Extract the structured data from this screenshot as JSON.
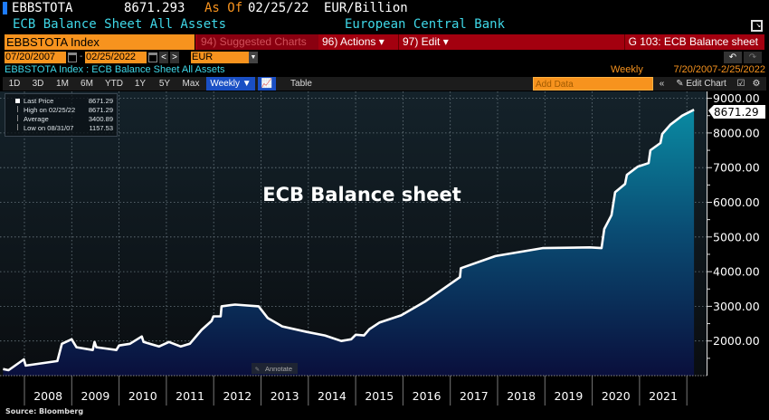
{
  "header": {
    "ticker": "EBBSTOTA",
    "price": "8671.293",
    "as_of_label": "As Of",
    "as_of_date": "02/25/22",
    "units": "EUR/Billion",
    "description": "ECB Balance Sheet All Assets",
    "source_name": "European Central Bank"
  },
  "command_bar": {
    "security_input": "EBBSTOTA Index",
    "suggested": "94) Suggested Charts",
    "actions": "96) Actions ▾",
    "edit": "97) Edit ▾",
    "page_title": "G 103: ECB Balance sheet"
  },
  "range_bar": {
    "start_date": "07/20/2007",
    "separator": "-",
    "end_date": "02/25/2022",
    "currency": "EUR",
    "prev": "<",
    "next": ">",
    "undo": "↶",
    "redo": "↷"
  },
  "subtitle": {
    "left": "EBBSTOTA Index : ECB Balance Sheet All Assets",
    "right_freq": "Weekly",
    "right_range": "7/20/2007-2/25/2022"
  },
  "toolbar": {
    "periods": [
      "1D",
      "3D",
      "1M",
      "6M",
      "YTD",
      "1Y",
      "5Y",
      "Max"
    ],
    "frequency": "Weekly ▼",
    "table": "Table",
    "add_data_placeholder": "Add Data",
    "collapse": "«",
    "edit_chart": "✎ Edit Chart"
  },
  "legend": [
    {
      "label": "Last Price",
      "value": "8671.29"
    },
    {
      "label": "High on 02/25/22",
      "value": "8671.29"
    },
    {
      "label": "Average",
      "value": "3400.89"
    },
    {
      "label": "Low on 08/31/07",
      "value": "1157.53"
    }
  ],
  "annotate_label": "Annotate",
  "footer": {
    "source": "Source:  Bloomberg"
  },
  "colors": {
    "line": "#ffffff",
    "fill_top": "#0a8aa2",
    "fill_bottom": "#0a0f3c",
    "accent_orange": "#f7931e",
    "header_red": "#a3000f",
    "cyan_text": "#3fd8e8"
  },
  "chart_data": {
    "type": "area",
    "title": "ECB Balance sheet",
    "xlabel": "",
    "ylabel": "",
    "ylim": [
      1000,
      9000
    ],
    "y_ticks": [
      "2000.00",
      "3000.00",
      "4000.00",
      "5000.00",
      "6000.00",
      "7000.00",
      "8000.00",
      "9000.00"
    ],
    "x_ticks": [
      "2008",
      "2009",
      "2010",
      "2011",
      "2012",
      "2013",
      "2014",
      "2015",
      "2016",
      "2017",
      "2018",
      "2019",
      "2020",
      "2021"
    ],
    "last_value_label": "8671.29",
    "grid": true,
    "legend_placement": "top-left",
    "series": [
      {
        "name": "Last Price",
        "points": [
          [
            "2007-07-20",
            1190
          ],
          [
            "2007-08-31",
            1157.53
          ],
          [
            "2007-12-28",
            1470
          ],
          [
            "2008-01-11",
            1290
          ],
          [
            "2008-09-12",
            1420
          ],
          [
            "2008-10-17",
            1920
          ],
          [
            "2008-12-31",
            2050
          ],
          [
            "2009-02-06",
            1820
          ],
          [
            "2009-06-12",
            1740
          ],
          [
            "2009-06-26",
            1970
          ],
          [
            "2009-07-10",
            1820
          ],
          [
            "2009-12-11",
            1740
          ],
          [
            "2010-01-01",
            1870
          ],
          [
            "2010-03-26",
            1920
          ],
          [
            "2010-06-25",
            2130
          ],
          [
            "2010-07-09",
            1970
          ],
          [
            "2010-11-05",
            1840
          ],
          [
            "2011-01-21",
            1970
          ],
          [
            "2011-04-22",
            1840
          ],
          [
            "2011-07-01",
            1920
          ],
          [
            "2011-09-30",
            2320
          ],
          [
            "2011-12-16",
            2580
          ],
          [
            "2011-12-30",
            2710
          ],
          [
            "2012-02-24",
            2710
          ],
          [
            "2012-03-02",
            3000
          ],
          [
            "2012-06-15",
            3050
          ],
          [
            "2012-12-14",
            3000
          ],
          [
            "2013-02-22",
            2660
          ],
          [
            "2013-06-14",
            2420
          ],
          [
            "2013-12-20",
            2260
          ],
          [
            "2014-05-09",
            2160
          ],
          [
            "2014-09-12",
            2000
          ],
          [
            "2014-11-28",
            2050
          ],
          [
            "2015-01-02",
            2180
          ],
          [
            "2015-03-06",
            2160
          ],
          [
            "2015-04-17",
            2340
          ],
          [
            "2015-07-03",
            2530
          ],
          [
            "2015-12-18",
            2740
          ],
          [
            "2016-06-17",
            3130
          ],
          [
            "2017-03-17",
            3840
          ],
          [
            "2017-03-24",
            4100
          ],
          [
            "2017-12-15",
            4450
          ],
          [
            "2018-12-14",
            4680
          ],
          [
            "2019-12-13",
            4700
          ],
          [
            "2020-03-13",
            4680
          ],
          [
            "2020-04-03",
            5230
          ],
          [
            "2020-05-29",
            5630
          ],
          [
            "2020-06-26",
            6290
          ],
          [
            "2020-09-11",
            6530
          ],
          [
            "2020-09-25",
            6790
          ],
          [
            "2020-12-18",
            7030
          ],
          [
            "2021-03-12",
            7130
          ],
          [
            "2021-03-26",
            7500
          ],
          [
            "2021-06-11",
            7710
          ],
          [
            "2021-06-25",
            7970
          ],
          [
            "2021-08-27",
            8240
          ],
          [
            "2021-11-26",
            8500
          ],
          [
            "2022-02-25",
            8671.29
          ]
        ]
      }
    ]
  }
}
